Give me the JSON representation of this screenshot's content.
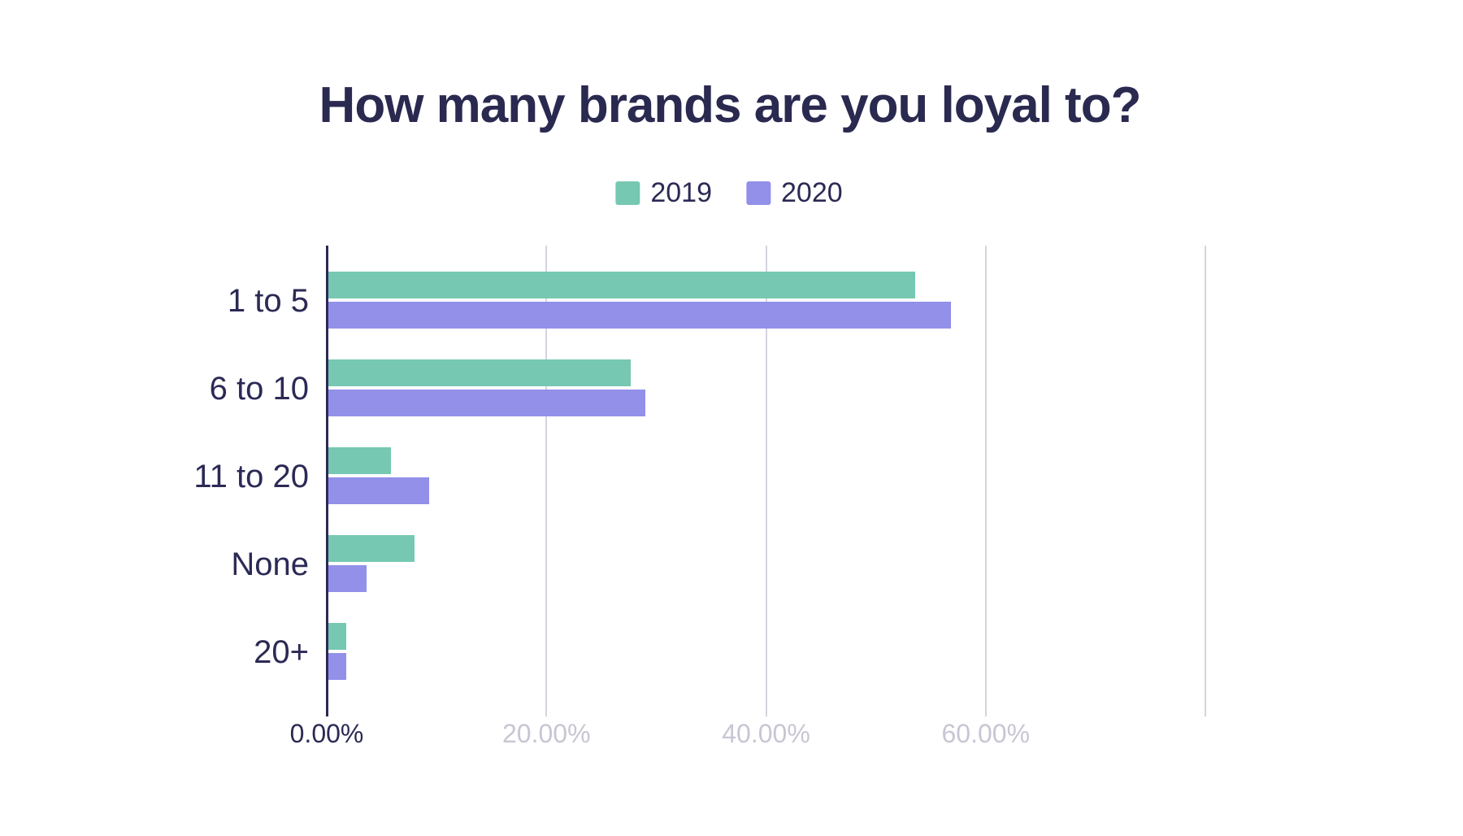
{
  "title": "How many brands are you loyal to?",
  "legend": {
    "items": [
      {
        "label": "2019",
        "color": "#76c8b2"
      },
      {
        "label": "2020",
        "color": "#9290e9"
      }
    ]
  },
  "colors": {
    "series_2019": "#76c8b2",
    "series_2020": "#9290e9",
    "text_navy": "#2b2a55",
    "axis_line": "#2b2a55",
    "gridline": "#d5d4de",
    "muted_tick_label": "#c7c6d4",
    "background": "#ffffff"
  },
  "chart_data": {
    "type": "bar",
    "orientation": "horizontal",
    "title": "How many brands are you loyal to?",
    "categories": [
      "1 to 5",
      "6 to 10",
      "11 to 20",
      "None",
      "20+"
    ],
    "series": [
      {
        "name": "2019",
        "color": "#76c8b2",
        "values": [
          53.5,
          27.6,
          5.7,
          7.9,
          1.7
        ]
      },
      {
        "name": "2020",
        "color": "#9290e9",
        "values": [
          56.7,
          28.9,
          9.2,
          3.5,
          1.7
        ]
      }
    ],
    "value_unit": "%",
    "xlim": [
      0,
      80
    ],
    "x_ticks": [
      {
        "pos": 0,
        "label": "0.00%"
      },
      {
        "pos": 20,
        "label": "20.00%"
      },
      {
        "pos": 40,
        "label": "40.00%"
      },
      {
        "pos": 60,
        "label": "60.00%"
      },
      {
        "pos": 80,
        "label": ""
      }
    ],
    "grid": true,
    "legend_position": "top-center",
    "xlabel": "",
    "ylabel": ""
  }
}
